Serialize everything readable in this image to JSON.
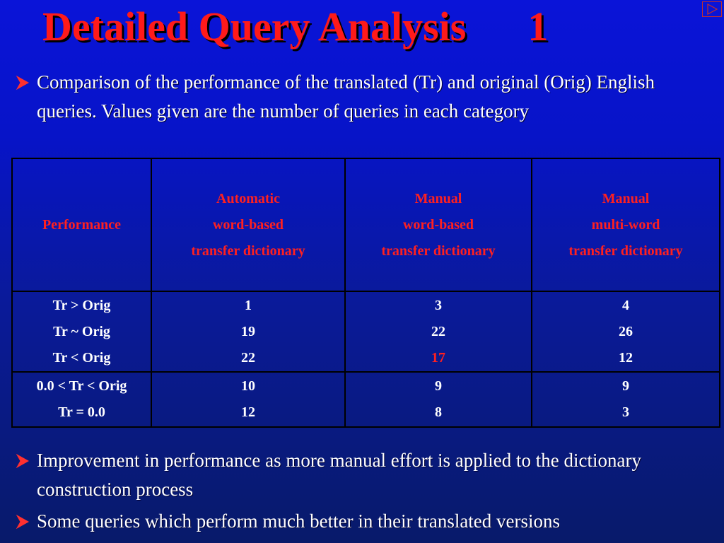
{
  "slide": {
    "title": "Detailed Query Analysis      1"
  },
  "bullets": [
    "Comparison of the performance of the translated (Tr) and original (Orig) English queries. Values given are the number of queries in each category",
    "Improvement in performance as more manual effort is applied to the dictionary construction process",
    "Some queries which perform much better in their translated versions"
  ],
  "colors": {
    "title": "#ff1a1a",
    "header": "#ff2020",
    "highlight": "#ff2020",
    "arrow": "#ff3030"
  },
  "table": {
    "headers": {
      "col0": "Performance",
      "col1": [
        "Automatic",
        "word-based",
        "transfer dictionary"
      ],
      "col2": [
        "Manual",
        "word-based",
        "transfer dictionary"
      ],
      "col3": [
        "Manual",
        "multi-word",
        "transfer dictionary"
      ]
    },
    "group1": {
      "labels": [
        "Tr > Orig",
        "Tr ~ Orig",
        "Tr < Orig"
      ],
      "col1": [
        "1",
        "19",
        "22"
      ],
      "col2": [
        "3",
        "22",
        "17"
      ],
      "col3": [
        "4",
        "26",
        "12"
      ]
    },
    "group2": {
      "labels": [
        "0.0 < Tr < Orig",
        "Tr = 0.0"
      ],
      "col1": [
        "10",
        "12"
      ],
      "col2": [
        "9",
        "8"
      ],
      "col3": [
        "9",
        "3"
      ]
    }
  }
}
